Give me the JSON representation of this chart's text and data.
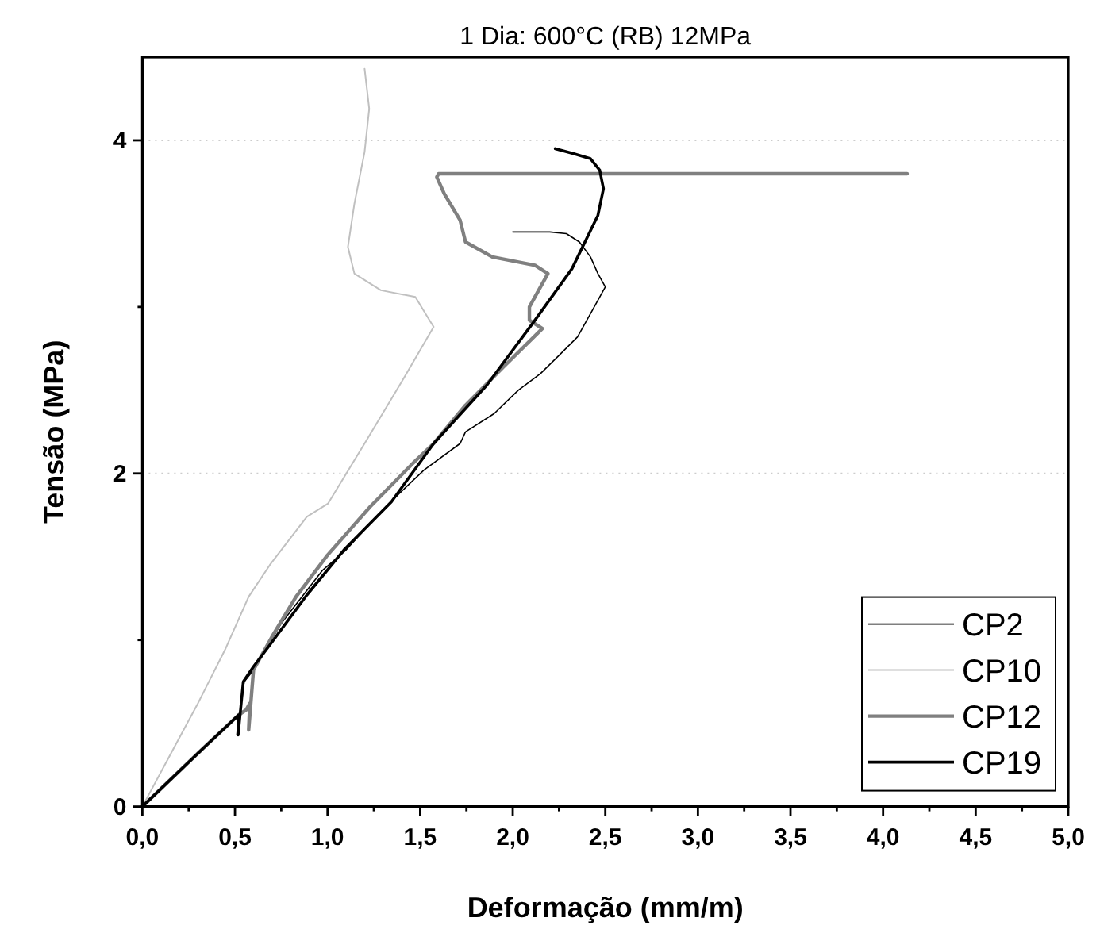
{
  "chart_data": {
    "type": "line",
    "title": "1 Dia: 600°C (RB) 12MPa",
    "xlabel": "Deformação (mm/m)",
    "ylabel": "Tensão (MPa)",
    "xlim": [
      0,
      5
    ],
    "ylim": [
      0,
      4.5
    ],
    "xticks": [
      {
        "value": 0,
        "label": "0,0"
      },
      {
        "value": 0.25,
        "label": null
      },
      {
        "value": 0.5,
        "label": "0,5"
      },
      {
        "value": 0.75,
        "label": null
      },
      {
        "value": 1,
        "label": "1,0"
      },
      {
        "value": 1.25,
        "label": null
      },
      {
        "value": 1.5,
        "label": "1,5"
      },
      {
        "value": 1.75,
        "label": null
      },
      {
        "value": 2,
        "label": "2,0"
      },
      {
        "value": 2.25,
        "label": null
      },
      {
        "value": 2.5,
        "label": "2,5"
      },
      {
        "value": 2.75,
        "label": null
      },
      {
        "value": 3,
        "label": "3,0"
      },
      {
        "value": 3.25,
        "label": null
      },
      {
        "value": 3.5,
        "label": "3,5"
      },
      {
        "value": 3.75,
        "label": null
      },
      {
        "value": 4,
        "label": "4,0"
      },
      {
        "value": 4.25,
        "label": null
      },
      {
        "value": 4.5,
        "label": "4,5"
      },
      {
        "value": 4.75,
        "label": null
      },
      {
        "value": 5,
        "label": "5,0"
      }
    ],
    "yticks": [
      0,
      {
        "value": 1,
        "label": null
      },
      2,
      {
        "value": 3,
        "label": null
      },
      4
    ],
    "grid": "y",
    "legend": "bottom right",
    "marker": "none",
    "line_style": "solid",
    "series": [
      {
        "name": "CP2",
        "color": "#000000",
        "x": [
          0,
          0.3,
          0.52,
          0.51,
          0.55,
          0.6,
          0.75,
          0.974,
          1.1,
          1.23,
          1.35,
          1.52,
          1.716,
          1.745,
          1.9,
          2.03,
          2.15,
          2.26,
          2.35,
          2.43,
          2.5,
          2.46,
          2.42,
          2.36,
          2.29,
          2.2,
          2.0
        ],
        "values": [
          0,
          0.32,
          0.55,
          0.43,
          0.75,
          0.82,
          1.1,
          1.42,
          1.54,
          1.7,
          1.84,
          2.02,
          2.18,
          2.25,
          2.36,
          2.5,
          2.6,
          2.72,
          2.82,
          2.98,
          3.12,
          3.2,
          3.3,
          3.39,
          3.44,
          3.45,
          3.45
        ]
      },
      {
        "name": "CP10",
        "color": "#c0c0c0",
        "x": [
          0,
          0.15,
          0.3,
          0.45,
          0.574,
          0.688,
          0.888,
          1.003,
          1.2,
          1.4,
          1.573,
          1.545,
          1.474,
          1.288,
          1.145,
          1.11,
          1.145,
          1.2,
          1.225,
          1.2
        ],
        "values": [
          0,
          0.31,
          0.62,
          0.95,
          1.26,
          1.45,
          1.74,
          1.82,
          2.18,
          2.55,
          2.88,
          2.93,
          3.06,
          3.1,
          3.2,
          3.36,
          3.62,
          3.93,
          4.19,
          4.43
        ]
      },
      {
        "name": "CP12",
        "color": "#808080",
        "x": [
          0,
          0.3,
          0.52,
          0.56,
          0.58,
          0.574,
          0.6,
          0.7,
          0.83,
          1.0,
          1.23,
          1.46,
          1.573,
          1.745,
          1.95,
          2.16,
          2.09,
          2.09,
          2.19,
          2.12,
          1.89,
          1.745,
          1.716,
          1.63,
          1.59,
          1.6,
          4.13
        ],
        "values": [
          0,
          0.32,
          0.55,
          0.58,
          0.62,
          0.46,
          0.82,
          1.02,
          1.26,
          1.51,
          1.8,
          2.06,
          2.18,
          2.41,
          2.64,
          2.87,
          2.92,
          3.0,
          3.2,
          3.25,
          3.3,
          3.39,
          3.52,
          3.68,
          3.78,
          3.8,
          3.8
        ]
      },
      {
        "name": "CP19",
        "color": "#000000",
        "x": [
          0,
          0.3,
          0.52,
          0.517,
          0.545,
          0.6,
          0.688,
          0.888,
          1.088,
          1.345,
          1.573,
          1.86,
          2.12,
          2.32,
          2.46,
          2.49,
          2.47,
          2.42,
          2.33,
          2.23
        ],
        "values": [
          0,
          0.32,
          0.55,
          0.43,
          0.75,
          0.84,
          0.97,
          1.27,
          1.54,
          1.83,
          2.18,
          2.53,
          2.92,
          3.23,
          3.55,
          3.71,
          3.82,
          3.89,
          3.92,
          3.95
        ]
      }
    ]
  }
}
